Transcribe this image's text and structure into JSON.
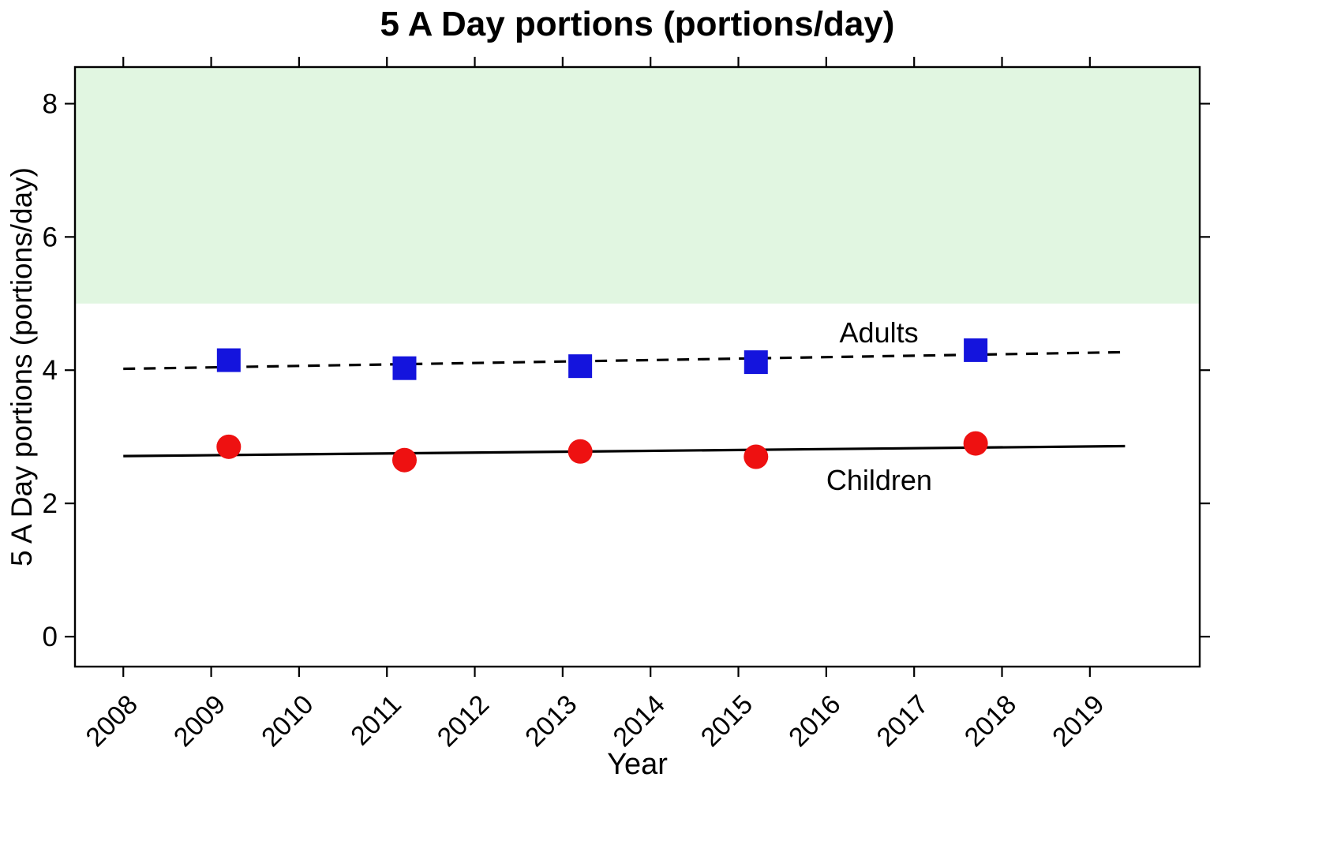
{
  "chart_data": {
    "type": "scatter",
    "title": "5 A Day portions (portions/day)",
    "xlabel": "Year",
    "ylabel": "5 A Day portions (portions/day)",
    "xlim": [
      2007.45,
      2020.25
    ],
    "ylim": [
      -0.45,
      8.55
    ],
    "x_ticks": [
      2008,
      2009,
      2010,
      2011,
      2012,
      2013,
      2014,
      2015,
      2016,
      2017,
      2018,
      2019
    ],
    "y_ticks": [
      0,
      2,
      4,
      6,
      8
    ],
    "grid": false,
    "target_band": {
      "from": 5,
      "to": 8.55,
      "color": "#e1f6e1"
    },
    "series": [
      {
        "name": "Adults",
        "marker": "square",
        "marker_color": "#1414dd",
        "line_style": "dashed",
        "line_color": "#000000",
        "points": {
          "x": [
            2009.2,
            2011.2,
            2013.2,
            2015.2,
            2017.7
          ],
          "y": [
            4.15,
            4.03,
            4.06,
            4.12,
            4.3
          ]
        },
        "trend": {
          "x": [
            2008.0,
            2019.4
          ],
          "y": [
            4.02,
            4.27
          ]
        },
        "label_pos": {
          "x": 2016.15,
          "y": 4.42
        }
      },
      {
        "name": "Children",
        "marker": "circle",
        "marker_color": "#ee1111",
        "line_style": "solid",
        "line_color": "#000000",
        "points": {
          "x": [
            2009.2,
            2011.2,
            2013.2,
            2015.2,
            2017.7
          ],
          "y": [
            2.85,
            2.65,
            2.78,
            2.7,
            2.9
          ]
        },
        "trend": {
          "x": [
            2008.0,
            2019.4
          ],
          "y": [
            2.71,
            2.86
          ]
        },
        "label_pos": {
          "x": 2016.0,
          "y": 2.2
        }
      }
    ]
  }
}
